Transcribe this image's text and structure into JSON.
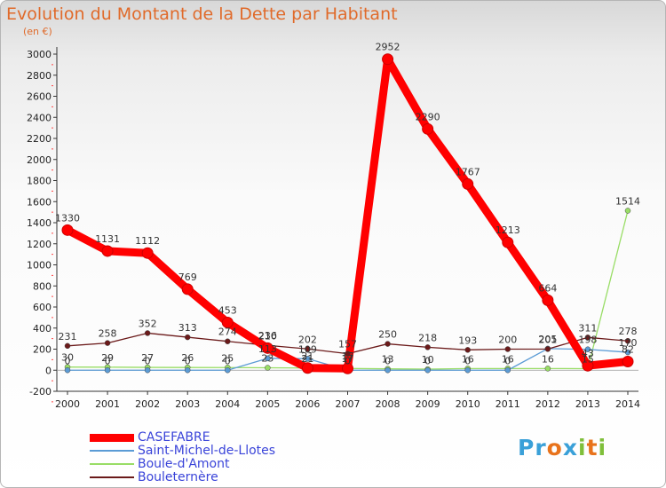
{
  "title": "Evolution du Montant de la Dette par Habitant",
  "unit": "(en €)",
  "logo": "Proxiti",
  "colors": {
    "casefabre": "#ff0000",
    "saint_michel": "#5b9bd5",
    "boule": "#99dd66",
    "bouleternere": "#6b1a1a"
  },
  "chart_data": {
    "type": "line",
    "title": "Evolution du Montant de la Dette par Habitant",
    "ylabel": "(en €)",
    "xlabel": "",
    "ylim": [
      -200,
      3000
    ],
    "ytick_step": 200,
    "grid": false,
    "legend_position": "bottom-left",
    "x": [
      "2000",
      "2001",
      "2002",
      "2003",
      "2004",
      "2005",
      "2006",
      "2007",
      "2008",
      "2009",
      "2010",
      "2011",
      "2012",
      "2013",
      "2014"
    ],
    "series": [
      {
        "name": "CASEFABRE",
        "color": "#ff0000",
        "values": [
          1330,
          1131,
          1112,
          769,
          453,
          210,
          21,
          17,
          2952,
          2290,
          1767,
          1213,
          664,
          43,
          82
        ],
        "labels": [
          "1330",
          "1131",
          "1112",
          "769",
          "453",
          "210",
          "21",
          "17",
          "2952",
          "2290",
          "1767",
          "1213",
          "664",
          "43",
          "82"
        ]
      },
      {
        "name": "Saint-Michel-de-Llotes",
        "color": "#5b9bd5",
        "values": [
          0,
          0,
          0,
          0,
          0,
          113,
          109,
          0,
          0,
          0,
          0,
          0,
          205,
          198,
          170
        ],
        "labels": [
          "0",
          "0",
          "0",
          "0",
          "0",
          "113",
          "109",
          "0",
          "0",
          "0",
          "0",
          "0",
          "205",
          "198",
          "170"
        ]
      },
      {
        "name": "Boule-d'Amont",
        "color": "#99dd66",
        "values": [
          30,
          29,
          27,
          26,
          25,
          23,
          21,
          17,
          13,
          10,
          16,
          16,
          16,
          15,
          1514
        ],
        "labels": [
          "30",
          "29",
          "27",
          "26",
          "25",
          "23",
          "21",
          "17",
          "13",
          "10",
          "16",
          "16",
          "16",
          "15",
          "1514"
        ]
      },
      {
        "name": "Bouleternère",
        "color": "#6b1a1a",
        "values": [
          231,
          258,
          352,
          313,
          274,
          236,
          202,
          157,
          250,
          218,
          193,
          200,
          201,
          311,
          278
        ],
        "labels": [
          "231",
          "258",
          "352",
          "313",
          "274",
          "236",
          "202",
          "157",
          "250",
          "218",
          "193",
          "200",
          "201",
          "311",
          "278"
        ]
      }
    ]
  }
}
